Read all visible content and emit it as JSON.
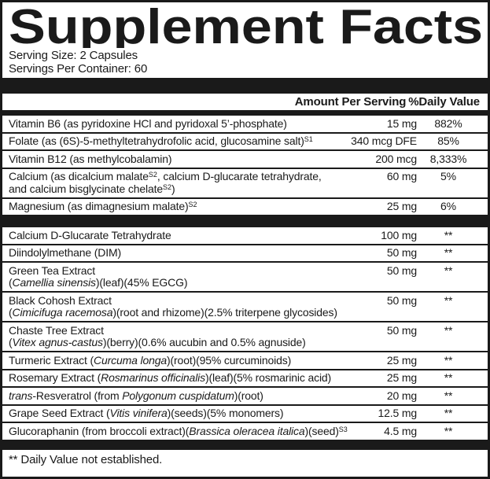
{
  "title": "Supplement Facts",
  "colors": {
    "ink": "#1a1a1a",
    "paper": "#ffffff"
  },
  "serving": {
    "size": "Serving Size: 2 Capsules",
    "per_container": "Servings Per Container: 60"
  },
  "table": {
    "col_amount": "Amount Per Serving",
    "col_dv": "%Daily Value",
    "sections": [
      {
        "rows": [
          {
            "name": [
              [
                {
                  "t": "Vitamin B6 (as pyridoxine HCl and pyridoxal 5’-phosphate)",
                  "s": "n"
                }
              ]
            ],
            "amount": "15 mg",
            "dv": "882%"
          },
          {
            "name": [
              [
                {
                  "t": "Folate (as (6S)-5-methyltetrahydrofolic acid, glucosamine salt)",
                  "s": "n"
                },
                {
                  "t": "S1",
                  "s": "sup"
                }
              ]
            ],
            "amount": "340 mcg DFE",
            "dv": "85%"
          },
          {
            "name": [
              [
                {
                  "t": "Vitamin B12 (as methylcobalamin)",
                  "s": "n"
                }
              ]
            ],
            "amount": "200 mcg",
            "dv": "8,333%"
          },
          {
            "name": [
              [
                {
                  "t": "Calcium (as dicalcium malate",
                  "s": "n"
                },
                {
                  "t": "S2",
                  "s": "sup"
                },
                {
                  "t": ", calcium D-glucarate tetrahydrate,",
                  "s": "n"
                }
              ],
              [
                {
                  "t": "and calcium bisglycinate chelate",
                  "s": "n"
                },
                {
                  "t": "S2",
                  "s": "sup"
                },
                {
                  "t": ")",
                  "s": "n"
                }
              ]
            ],
            "amount": "60 mg",
            "dv": "5%"
          },
          {
            "name": [
              [
                {
                  "t": "Magnesium (as dimagnesium malate)",
                  "s": "n"
                },
                {
                  "t": "S2",
                  "s": "sup"
                }
              ]
            ],
            "amount": "25 mg",
            "dv": "6%"
          }
        ]
      },
      {
        "rows": [
          {
            "name": [
              [
                {
                  "t": "Calcium D-Glucarate Tetrahydrate",
                  "s": "n"
                }
              ]
            ],
            "amount": "100 mg",
            "dv": "**"
          },
          {
            "name": [
              [
                {
                  "t": "Diindolylmethane (DIM)",
                  "s": "n"
                }
              ]
            ],
            "amount": "50 mg",
            "dv": "**"
          },
          {
            "name": [
              [
                {
                  "t": "Green Tea Extract",
                  "s": "n"
                }
              ],
              [
                {
                  "t": "(",
                  "s": "n"
                },
                {
                  "t": "Camellia sinensis",
                  "s": "i"
                },
                {
                  "t": ")(leaf)(45% EGCG)",
                  "s": "n"
                }
              ]
            ],
            "amount": "50 mg",
            "dv": "**"
          },
          {
            "name": [
              [
                {
                  "t": "Black Cohosh Extract",
                  "s": "n"
                }
              ],
              [
                {
                  "t": "(",
                  "s": "n"
                },
                {
                  "t": "Cimicifuga racemosa",
                  "s": "i"
                },
                {
                  "t": ")(root and rhizome)(2.5% triterpene glycosides)",
                  "s": "n"
                }
              ]
            ],
            "amount": "50 mg",
            "dv": "**"
          },
          {
            "name": [
              [
                {
                  "t": "Chaste Tree Extract",
                  "s": "n"
                }
              ],
              [
                {
                  "t": "(",
                  "s": "n"
                },
                {
                  "t": "Vitex agnus-castus",
                  "s": "i"
                },
                {
                  "t": ")(berry)(0.6% aucubin and 0.5% agnuside)",
                  "s": "n"
                }
              ]
            ],
            "amount": "50 mg",
            "dv": "**"
          },
          {
            "name": [
              [
                {
                  "t": "Turmeric Extract (",
                  "s": "n"
                },
                {
                  "t": "Curcuma longa",
                  "s": "i"
                },
                {
                  "t": ")(root)(95% curcuminoids)",
                  "s": "n"
                }
              ]
            ],
            "amount": "25 mg",
            "dv": "**"
          },
          {
            "name": [
              [
                {
                  "t": "Rosemary Extract (",
                  "s": "n"
                },
                {
                  "t": "Rosmarinus officinalis",
                  "s": "i"
                },
                {
                  "t": ")(leaf)(5% rosmarinic acid)",
                  "s": "n"
                }
              ]
            ],
            "amount": "25 mg",
            "dv": "**"
          },
          {
            "name": [
              [
                {
                  "t": "trans",
                  "s": "i"
                },
                {
                  "t": "-Resveratrol (from ",
                  "s": "n"
                },
                {
                  "t": "Polygonum cuspidatum",
                  "s": "i"
                },
                {
                  "t": ")(root)",
                  "s": "n"
                }
              ]
            ],
            "amount": "20 mg",
            "dv": "**"
          },
          {
            "name": [
              [
                {
                  "t": "Grape Seed Extract (",
                  "s": "n"
                },
                {
                  "t": "Vitis vinifera",
                  "s": "i"
                },
                {
                  "t": ")(seeds)(5% monomers)",
                  "s": "n"
                }
              ]
            ],
            "amount": "12.5 mg",
            "dv": "**"
          },
          {
            "name": [
              [
                {
                  "t": "Glucoraphanin (from broccoli extract)(",
                  "s": "n"
                },
                {
                  "t": "Brassica oleracea italica",
                  "s": "i"
                },
                {
                  "t": ")(seed)",
                  "s": "n"
                },
                {
                  "t": "S3",
                  "s": "sup"
                }
              ]
            ],
            "amount": "4.5 mg",
            "dv": "**"
          }
        ]
      }
    ]
  },
  "footnote": "** Daily Value not established."
}
